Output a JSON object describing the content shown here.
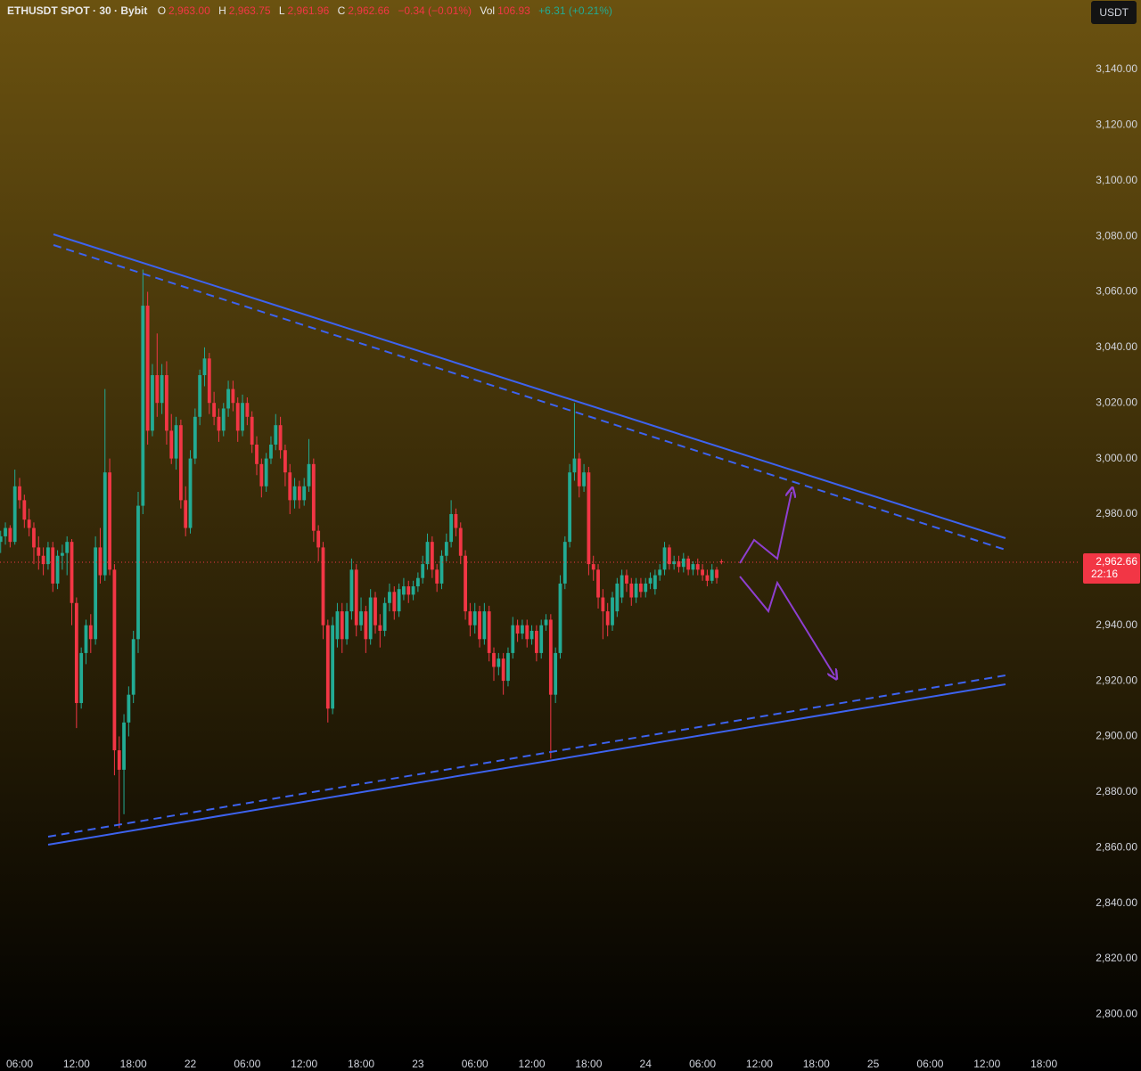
{
  "chart_data": {
    "type": "candlestick",
    "title": "ETHUSDT SPOT · 30 · Bybit",
    "ohlc_readout": [
      {
        "label": "O",
        "value": "2,963.00"
      },
      {
        "label": "H",
        "value": "2,963.75"
      },
      {
        "label": "L",
        "value": "2,961.96"
      },
      {
        "label": "C",
        "value": "2,962.66"
      }
    ],
    "change": "−0.34 (−0.01%)",
    "volume": {
      "label": "Vol",
      "value": "106.93",
      "change": "+6.31 (+0.21%)"
    },
    "currency": "USDT",
    "last_price_label": "2,962.66",
    "countdown": "22:16",
    "up_color": "#22ab94",
    "down_color": "#f23645",
    "grid": false,
    "ylim": [
      2786,
      3165
    ],
    "yticks": [
      {
        "value": 2800,
        "label": "2,800.00"
      },
      {
        "value": 2820,
        "label": "2,820.00"
      },
      {
        "value": 2840,
        "label": "2,840.00"
      },
      {
        "value": 2860,
        "label": "2,860.00"
      },
      {
        "value": 2880,
        "label": "2,880.00"
      },
      {
        "value": 2900,
        "label": "2,900.00"
      },
      {
        "value": 2920,
        "label": "2,920.00"
      },
      {
        "value": 2940,
        "label": "2,940.00"
      },
      {
        "value": 2960,
        "label": "2,960.00"
      },
      {
        "value": 2980,
        "label": "2,980.00"
      },
      {
        "value": 3000,
        "label": "3,000.00"
      },
      {
        "value": 3020,
        "label": "3,020.00"
      },
      {
        "value": 3040,
        "label": "3,040.00"
      },
      {
        "value": 3060,
        "label": "3,060.00"
      },
      {
        "value": 3080,
        "label": "3,080.00"
      },
      {
        "value": 3100,
        "label": "3,100.00"
      },
      {
        "value": 3120,
        "label": "3,120.00"
      },
      {
        "value": 3140,
        "label": "3,140.00"
      }
    ],
    "xticks": [
      "06:00",
      "12:00",
      "18:00",
      "22",
      "06:00",
      "12:00",
      "18:00",
      "23",
      "06:00",
      "12:00",
      "18:00",
      "24",
      "06:00",
      "12:00",
      "18:00",
      "25",
      "06:00",
      "12:00",
      "18:00"
    ],
    "ohlc": [
      [
        2970,
        2974,
        2966,
        2972
      ],
      [
        2972,
        2977,
        2969,
        2975
      ],
      [
        2975,
        2976,
        2968,
        2970
      ],
      [
        2970,
        2996,
        2969,
        2990
      ],
      [
        2990,
        2993,
        2982,
        2985
      ],
      [
        2985,
        2987,
        2975,
        2978
      ],
      [
        2978,
        2982,
        2972,
        2975
      ],
      [
        2975,
        2977,
        2962,
        2968
      ],
      [
        2968,
        2972,
        2960,
        2965
      ],
      [
        2965,
        2968,
        2958,
        2962
      ],
      [
        2962,
        2970,
        2960,
        2968
      ],
      [
        2968,
        2970,
        2952,
        2955
      ],
      [
        2955,
        2967,
        2953,
        2965
      ],
      [
        2965,
        2969,
        2960,
        2966
      ],
      [
        2966,
        2972,
        2958,
        2970
      ],
      [
        2970,
        2971,
        2940,
        2948
      ],
      [
        2948,
        2950,
        2903,
        2912
      ],
      [
        2912,
        2932,
        2910,
        2930
      ],
      [
        2930,
        2942,
        2926,
        2940
      ],
      [
        2940,
        2944,
        2930,
        2935
      ],
      [
        2935,
        2972,
        2933,
        2968
      ],
      [
        2968,
        2975,
        2955,
        2958
      ],
      [
        2958,
        3025,
        2956,
        2995
      ],
      [
        2995,
        3000,
        2958,
        2960
      ],
      [
        2960,
        2962,
        2886,
        2895
      ],
      [
        2895,
        2900,
        2867,
        2888
      ],
      [
        2888,
        2908,
        2872,
        2905
      ],
      [
        2905,
        2918,
        2900,
        2915
      ],
      [
        2915,
        2938,
        2912,
        2935
      ],
      [
        2935,
        2988,
        2930,
        2983
      ],
      [
        2983,
        3068,
        2980,
        3055
      ],
      [
        3055,
        3060,
        3005,
        3010
      ],
      [
        3010,
        3034,
        3008,
        3030
      ],
      [
        3030,
        3045,
        3015,
        3020
      ],
      [
        3020,
        3034,
        3016,
        3030
      ],
      [
        3030,
        3035,
        3005,
        3010
      ],
      [
        3010,
        3016,
        2998,
        3000
      ],
      [
        3000,
        3015,
        2996,
        3012
      ],
      [
        3012,
        3014,
        2982,
        2985
      ],
      [
        2985,
        2990,
        2972,
        2975
      ],
      [
        2975,
        3003,
        2973,
        3000
      ],
      [
        3000,
        3018,
        2998,
        3015
      ],
      [
        3015,
        3032,
        3012,
        3030
      ],
      [
        3030,
        3040,
        3026,
        3036
      ],
      [
        3036,
        3038,
        3016,
        3020
      ],
      [
        3020,
        3024,
        3012,
        3015
      ],
      [
        3015,
        3018,
        3006,
        3010
      ],
      [
        3010,
        3020,
        3008,
        3018
      ],
      [
        3018,
        3028,
        3015,
        3025
      ],
      [
        3025,
        3028,
        3017,
        3020
      ],
      [
        3020,
        3022,
        3006,
        3010
      ],
      [
        3010,
        3023,
        3008,
        3020
      ],
      [
        3020,
        3022,
        3012,
        3015
      ],
      [
        3015,
        3017,
        3002,
        3005
      ],
      [
        3005,
        3008,
        2994,
        2998
      ],
      [
        2998,
        3000,
        2986,
        2990
      ],
      [
        2990,
        3002,
        2988,
        3000
      ],
      [
        3000,
        3008,
        2998,
        3005
      ],
      [
        3005,
        3016,
        3003,
        3012
      ],
      [
        3012,
        3015,
        3000,
        3003
      ],
      [
        3003,
        3005,
        2990,
        2995
      ],
      [
        2995,
        2998,
        2980,
        2985
      ],
      [
        2985,
        2993,
        2982,
        2990
      ],
      [
        2990,
        2992,
        2982,
        2985
      ],
      [
        2985,
        2993,
        2983,
        2990
      ],
      [
        2990,
        3007,
        2988,
        2998
      ],
      [
        2998,
        3000,
        2970,
        2974
      ],
      [
        2974,
        2976,
        2963,
        2968
      ],
      [
        2968,
        2970,
        2935,
        2940
      ],
      [
        2940,
        2942,
        2905,
        2910
      ],
      [
        2910,
        2943,
        2908,
        2940
      ],
      [
        2935,
        2948,
        2932,
        2945
      ],
      [
        2945,
        2948,
        2930,
        2935
      ],
      [
        2935,
        2948,
        2933,
        2945
      ],
      [
        2945,
        2964,
        2942,
        2960
      ],
      [
        2960,
        2962,
        2936,
        2940
      ],
      [
        2940,
        2950,
        2938,
        2945
      ],
      [
        2945,
        2947,
        2930,
        2935
      ],
      [
        2935,
        2953,
        2933,
        2950
      ],
      [
        2950,
        2952,
        2937,
        2940
      ],
      [
        2940,
        2944,
        2932,
        2938
      ],
      [
        2938,
        2950,
        2936,
        2948
      ],
      [
        2948,
        2955,
        2945,
        2952
      ],
      [
        2952,
        2954,
        2942,
        2945
      ],
      [
        2945,
        2955,
        2943,
        2953
      ],
      [
        2951,
        2957,
        2949,
        2954
      ],
      [
        2954,
        2956,
        2948,
        2951
      ],
      [
        2951,
        2956,
        2949,
        2954
      ],
      [
        2954,
        2959,
        2952,
        2957
      ],
      [
        2957,
        2965,
        2955,
        2962
      ],
      [
        2962,
        2973,
        2960,
        2970
      ],
      [
        2970,
        2972,
        2957,
        2960
      ],
      [
        2960,
        2962,
        2952,
        2955
      ],
      [
        2955,
        2967,
        2953,
        2965
      ],
      [
        2965,
        2973,
        2963,
        2970
      ],
      [
        2970,
        2985,
        2968,
        2980
      ],
      [
        2980,
        2982,
        2972,
        2975
      ],
      [
        2975,
        2977,
        2962,
        2965
      ],
      [
        2965,
        2967,
        2942,
        2945
      ],
      [
        2945,
        2948,
        2936,
        2940
      ],
      [
        2940,
        2948,
        2937,
        2945
      ],
      [
        2945,
        2947,
        2932,
        2935
      ],
      [
        2935,
        2948,
        2933,
        2945
      ],
      [
        2945,
        2947,
        2927,
        2930
      ],
      [
        2930,
        2932,
        2920,
        2925
      ],
      [
        2925,
        2930,
        2922,
        2928
      ],
      [
        2928,
        2930,
        2915,
        2920
      ],
      [
        2920,
        2932,
        2918,
        2930
      ],
      [
        2930,
        2943,
        2928,
        2940
      ],
      [
        2940,
        2942,
        2934,
        2937
      ],
      [
        2937,
        2942,
        2935,
        2940
      ],
      [
        2940,
        2942,
        2932,
        2935
      ],
      [
        2935,
        2940,
        2933,
        2938
      ],
      [
        2938,
        2940,
        2927,
        2930
      ],
      [
        2930,
        2942,
        2928,
        2940
      ],
      [
        2940,
        2944,
        2938,
        2942
      ],
      [
        2942,
        2944,
        2892,
        2915
      ],
      [
        2915,
        2932,
        2912,
        2930
      ],
      [
        2930,
        2958,
        2928,
        2955
      ],
      [
        2955,
        2972,
        2953,
        2970
      ],
      [
        2970,
        2998,
        2968,
        2995
      ],
      [
        2995,
        3020,
        2992,
        3000
      ],
      [
        3000,
        3002,
        2986,
        2990
      ],
      [
        2990,
        2998,
        2988,
        2995
      ],
      [
        2995,
        2997,
        2958,
        2962
      ],
      [
        2962,
        2965,
        2956,
        2960
      ],
      [
        2960,
        2962,
        2946,
        2950
      ],
      [
        2950,
        2953,
        2935,
        2945
      ],
      [
        2945,
        2948,
        2936,
        2940
      ],
      [
        2940,
        2952,
        2938,
        2950
      ],
      [
        2945,
        2957,
        2943,
        2955
      ],
      [
        2950,
        2960,
        2948,
        2958
      ],
      [
        2958,
        2960,
        2952,
        2955
      ],
      [
        2955,
        2957,
        2947,
        2950
      ],
      [
        2950,
        2957,
        2948,
        2955
      ],
      [
        2955,
        2957,
        2950,
        2952
      ],
      [
        2952,
        2957,
        2950,
        2955
      ],
      [
        2955,
        2959,
        2953,
        2957
      ],
      [
        2953,
        2960,
        2951,
        2958
      ],
      [
        2958,
        2962,
        2956,
        2960
      ],
      [
        2960,
        2970,
        2958,
        2968
      ],
      [
        2968,
        2969,
        2960,
        2962
      ],
      [
        2962,
        2965,
        2960,
        2963
      ],
      [
        2963,
        2965,
        2959,
        2961
      ],
      [
        2961,
        2966,
        2959,
        2964
      ],
      [
        2964,
        2965,
        2958,
        2960
      ],
      [
        2960,
        2963,
        2958,
        2962
      ],
      [
        2962,
        2964,
        2958,
        2960
      ],
      [
        2960,
        2962,
        2956,
        2958
      ],
      [
        2958,
        2960,
        2954,
        2956
      ],
      [
        2956,
        2962,
        2955,
        2960
      ],
      [
        2960,
        2961,
        2955,
        2957
      ],
      [
        2963,
        2963.75,
        2961.96,
        2962.66
      ]
    ]
  }
}
